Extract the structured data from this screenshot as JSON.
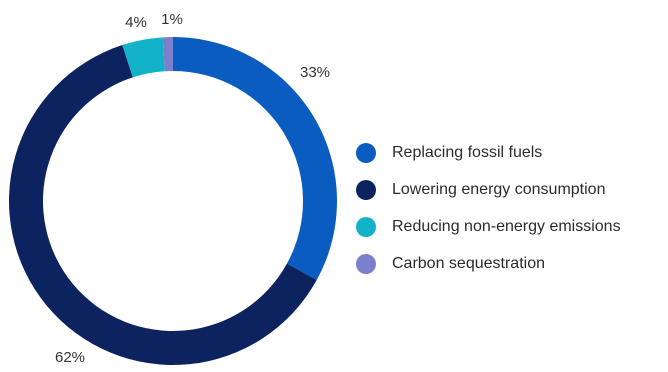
{
  "chart_data": {
    "type": "pie",
    "donut": true,
    "title": "",
    "legend_position": "right",
    "slices": [
      {
        "name": "Replacing fossil fuels",
        "value": 33,
        "label": "33%",
        "color": "#0a5cc0"
      },
      {
        "name": "Lowering energy consumption",
        "value": 62,
        "label": "62%",
        "color": "#0c2360"
      },
      {
        "name": "Reducing non-energy emissions",
        "value": 4,
        "label": "4%",
        "color": "#12b3c8"
      },
      {
        "name": "Carbon sequestration",
        "value": 1,
        "label": "1%",
        "color": "#7b7fcc"
      }
    ]
  }
}
